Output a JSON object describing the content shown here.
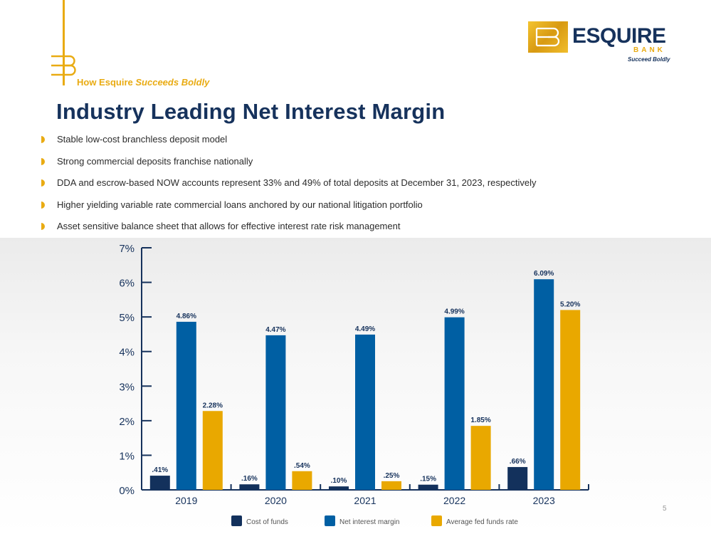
{
  "header": {
    "tagline_prefix": "How Esquire",
    "tagline_emphasis": "Succeeds Boldly",
    "title": "Industry Leading Net Interest Margin"
  },
  "logo": {
    "word": "ESQUIRE",
    "sub": "BANK",
    "slogan": "Succeed Boldly",
    "gold": "#e9ab12",
    "navy": "#16325c"
  },
  "bullets": [
    "Stable low-cost branchless deposit model",
    "Strong commercial deposits franchise nationally",
    "DDA and escrow-based NOW accounts represent 33% and 49% of total deposits at December 31, 2023, respectively",
    "Higher yielding variable rate commercial loans anchored by our national litigation portfolio",
    "Asset sensitive balance sheet that allows for effective interest rate risk management"
  ],
  "chart_data": {
    "type": "bar",
    "categories": [
      "2019",
      "2020",
      "2021",
      "2022",
      "2023"
    ],
    "series": [
      {
        "name": "Cost of funds",
        "values": [
          0.41,
          0.16,
          0.1,
          0.15,
          0.66
        ],
        "labels": [
          ".41%",
          ".16%",
          ".10%",
          ".15%",
          ".66%"
        ],
        "color": "#13315c"
      },
      {
        "name": "Net interest margin",
        "values": [
          4.86,
          4.47,
          4.49,
          4.99,
          6.09
        ],
        "labels": [
          "4.86%",
          "4.47%",
          "4.49%",
          "4.99%",
          "6.09%"
        ],
        "color": "#005fa3"
      },
      {
        "name": "Average fed funds rate",
        "values": [
          2.28,
          0.54,
          0.25,
          1.85,
          5.2
        ],
        "labels": [
          "2.28%",
          ".54%",
          ".25%",
          "1.85%",
          "5.20%"
        ],
        "color": "#e9a800"
      }
    ],
    "y_ticks": [
      "0%",
      "1%",
      "2%",
      "3%",
      "4%",
      "5%",
      "6%",
      "7%"
    ],
    "ylim": [
      0,
      7
    ],
    "legend_position": "bottom",
    "grid": false
  },
  "footer": {
    "page_number": "5"
  }
}
